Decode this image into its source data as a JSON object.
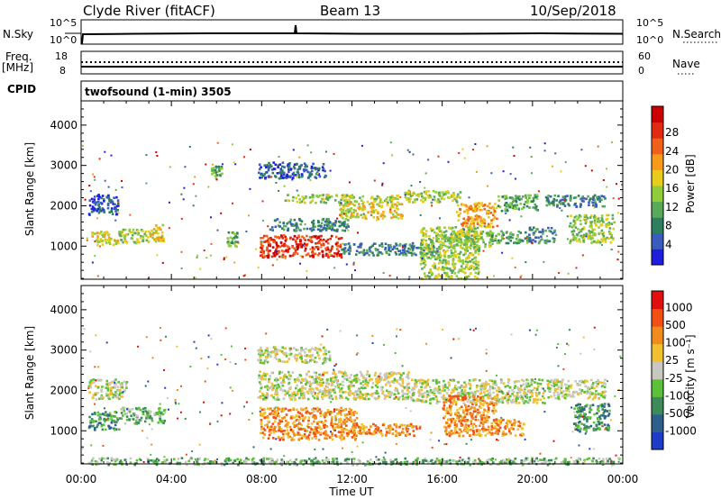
{
  "header": {
    "station": "Clyde River (fitACF)",
    "beam": "Beam 13",
    "date": "10/Sep/2018"
  },
  "strips": {
    "nsky_label": "N.Sky",
    "nsky_ticks": [
      "10^5",
      "10^0"
    ],
    "nsearch_label": "N.Search",
    "nsearch_ticks": [
      "10^5",
      "10^0"
    ],
    "freq_label": "Freq.",
    "freq_unit": "[MHz]",
    "freq_ticks": [
      "18",
      "8"
    ],
    "nave_label": "Nave",
    "nave_ticks": [
      "60",
      "0"
    ],
    "cpid_label": "CPID",
    "cpid_value": "twofsound (1-min) 3505"
  },
  "chart_data": [
    {
      "type": "heatmap",
      "title": "",
      "ylabel": "Slant Range [km]",
      "xlabel": "",
      "yticks": [
        1000,
        2000,
        3000,
        4000
      ],
      "ylim": [
        180,
        4600
      ],
      "xlim": [
        0,
        24
      ],
      "colorbar": {
        "label": "Power [dB]",
        "ticks": [
          "4",
          "8",
          "12",
          "16",
          "20",
          "24",
          "28"
        ],
        "colors": [
          "#1e1edc",
          "#3a5cbc",
          "#2e7f5e",
          "#5aa85a",
          "#8ecc3c",
          "#e8cc1a",
          "#f59a1a",
          "#f0601a",
          "#e02a12",
          "#cc0000"
        ]
      },
      "bands": [
        {
          "t0": 0.4,
          "t1": 1.6,
          "r0": 1050,
          "r1": 1400,
          "level": 5
        },
        {
          "t0": 0.3,
          "t1": 1.6,
          "r0": 1800,
          "r1": 2300,
          "level": 1
        },
        {
          "t0": 1.6,
          "t1": 3.0,
          "r0": 1100,
          "r1": 1450,
          "level": 4
        },
        {
          "t0": 3.0,
          "t1": 3.7,
          "r0": 1100,
          "r1": 1550,
          "level": 5
        },
        {
          "t0": 5.7,
          "t1": 6.2,
          "r0": 2700,
          "r1": 3000,
          "level": 3
        },
        {
          "t0": 6.4,
          "t1": 6.9,
          "r0": 1000,
          "r1": 1400,
          "level": 3
        },
        {
          "t0": 7.9,
          "t1": 11.5,
          "r0": 750,
          "r1": 1300,
          "level": 8
        },
        {
          "t0": 8.3,
          "t1": 11.8,
          "r0": 1400,
          "r1": 1700,
          "level": 2
        },
        {
          "t0": 7.8,
          "t1": 10.8,
          "r0": 2700,
          "r1": 3100,
          "level": 1
        },
        {
          "t0": 9.0,
          "t1": 14.0,
          "r0": 2100,
          "r1": 2300,
          "level": 4
        },
        {
          "t0": 11.4,
          "t1": 14.2,
          "r0": 1700,
          "r1": 2100,
          "level": 5
        },
        {
          "t0": 11.5,
          "t1": 15.8,
          "r0": 800,
          "r1": 1100,
          "level": 2
        },
        {
          "t0": 14.3,
          "t1": 16.8,
          "r0": 2100,
          "r1": 2400,
          "level": 4
        },
        {
          "t0": 15.8,
          "t1": 18.2,
          "r0": 1000,
          "r1": 1400,
          "level": 4
        },
        {
          "t0": 16.6,
          "t1": 18.4,
          "r0": 1500,
          "r1": 2100,
          "level": 6
        },
        {
          "t0": 18.0,
          "t1": 19.8,
          "r0": 1100,
          "r1": 1400,
          "level": 3
        },
        {
          "t0": 18.4,
          "t1": 20.2,
          "r0": 1900,
          "r1": 2300,
          "level": 3
        },
        {
          "t0": 19.8,
          "t1": 21.0,
          "r0": 1100,
          "r1": 1500,
          "level": 2
        },
        {
          "t0": 21.6,
          "t1": 23.6,
          "r0": 1100,
          "r1": 1800,
          "level": 4
        },
        {
          "t0": 20.5,
          "t1": 23.2,
          "r0": 2000,
          "r1": 2300,
          "level": 2
        },
        {
          "t0": 15.0,
          "t1": 17.6,
          "r0": 200,
          "r1": 1500,
          "level": 4
        }
      ]
    },
    {
      "type": "heatmap",
      "title": "",
      "ylabel": "Slant Range [km]",
      "xlabel": "Time UT",
      "xticks": [
        "00:00",
        "04:00",
        "08:00",
        "12:00",
        "16:00",
        "20:00",
        "00:00"
      ],
      "yticks": [
        1000,
        2000,
        3000,
        4000
      ],
      "ylim": [
        180,
        4600
      ],
      "xlim": [
        0,
        24
      ],
      "colorbar": {
        "label": "Velocity [m s⁻¹]",
        "ticks": [
          "1000",
          "500",
          "100",
          "25",
          "-25",
          "-100",
          "-500",
          "-1000"
        ],
        "colors": [
          "#1e3cc8",
          "#2e5f8a",
          "#3e8a5a",
          "#5cc03a",
          "#c8c8c0",
          "#f0c030",
          "#f08c1e",
          "#f05014",
          "#e01010"
        ]
      },
      "bands": [
        {
          "t0": 0.3,
          "t1": 1.7,
          "r0": 1050,
          "r1": 1500,
          "level": 2
        },
        {
          "t0": 1.7,
          "t1": 3.7,
          "r0": 1200,
          "r1": 1600,
          "level": 3
        },
        {
          "t0": 0.3,
          "t1": 2.0,
          "r0": 1800,
          "r1": 2300,
          "level": 4
        },
        {
          "t0": 7.9,
          "t1": 12.2,
          "r0": 800,
          "r1": 1600,
          "level": 6
        },
        {
          "t0": 7.8,
          "t1": 14.5,
          "r0": 1800,
          "r1": 2500,
          "level": 4
        },
        {
          "t0": 7.8,
          "t1": 11.0,
          "r0": 2700,
          "r1": 3100,
          "level": 4
        },
        {
          "t0": 12.0,
          "t1": 15.0,
          "r0": 900,
          "r1": 1200,
          "level": 6
        },
        {
          "t0": 14.5,
          "t1": 20.5,
          "r0": 1700,
          "r1": 2300,
          "level": 4
        },
        {
          "t0": 16.0,
          "t1": 18.4,
          "r0": 900,
          "r1": 1900,
          "level": 6
        },
        {
          "t0": 18.4,
          "t1": 19.6,
          "r0": 900,
          "r1": 1300,
          "level": 6
        },
        {
          "t0": 21.8,
          "t1": 23.4,
          "r0": 1000,
          "r1": 1700,
          "level": 2
        },
        {
          "t0": 20.6,
          "t1": 23.2,
          "r0": 1800,
          "r1": 2300,
          "level": 4
        },
        {
          "t0": 0.2,
          "t1": 23.8,
          "r0": 180,
          "r1": 350,
          "level": 3
        }
      ]
    }
  ]
}
